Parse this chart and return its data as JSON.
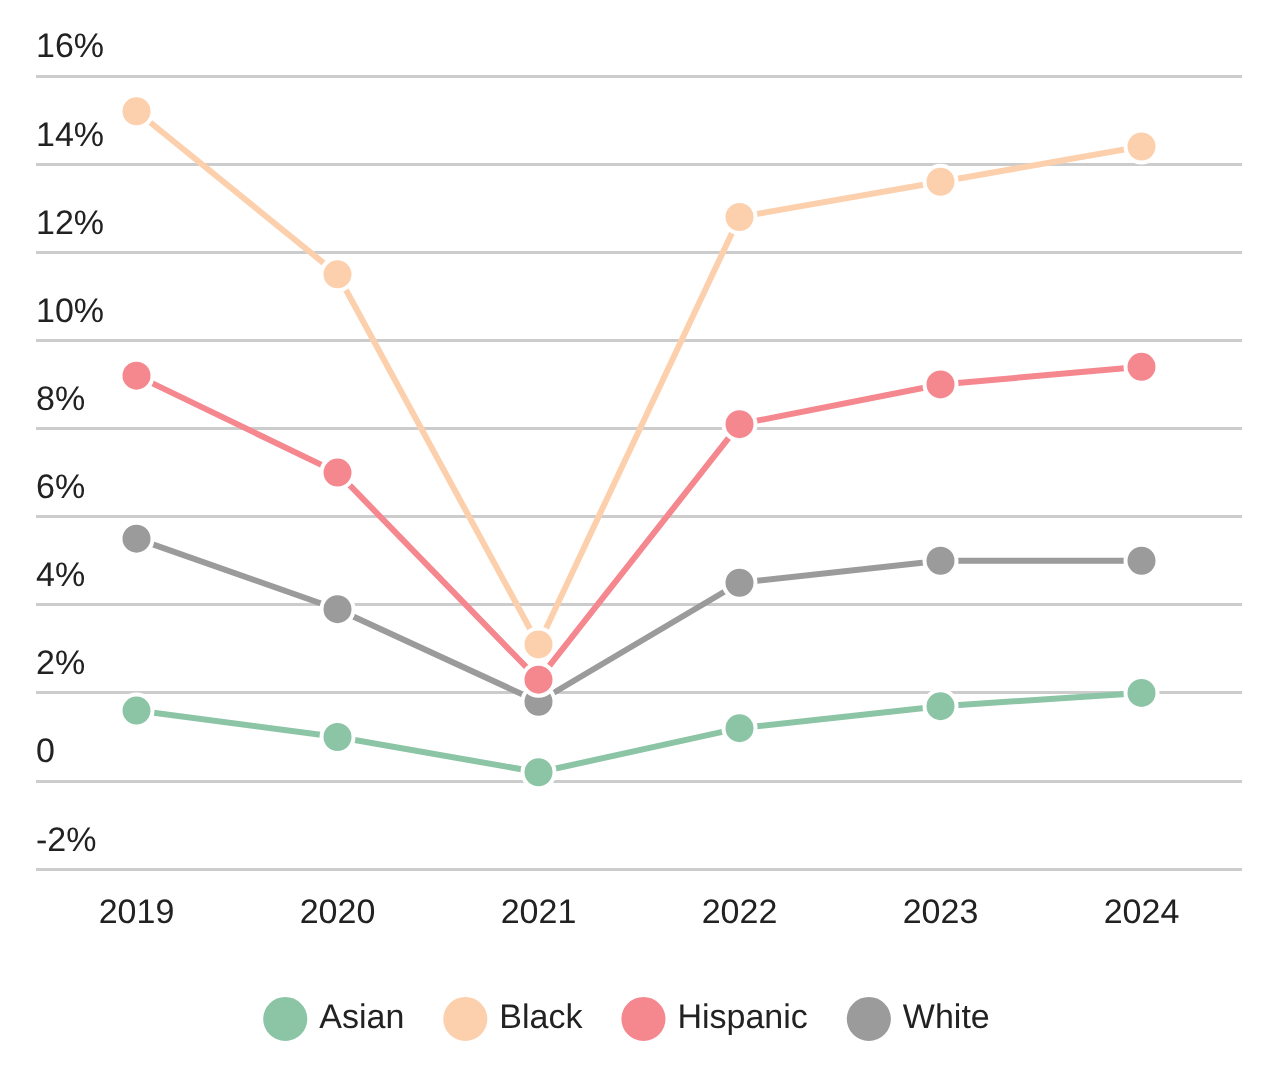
{
  "chart_data": {
    "type": "line",
    "categories": [
      "2019",
      "2020",
      "2021",
      "2022",
      "2023",
      "2024"
    ],
    "series": [
      {
        "name": "Asian",
        "color": "#8cc5a6",
        "values": [
          1.6,
          1.0,
          0.2,
          1.2,
          1.7,
          2.0
        ]
      },
      {
        "name": "Black",
        "color": "#fdd0ad",
        "values": [
          15.2,
          11.5,
          3.1,
          12.8,
          13.6,
          14.4
        ]
      },
      {
        "name": "Hispanic",
        "color": "#f5878f",
        "values": [
          9.2,
          7.0,
          2.3,
          8.1,
          9.0,
          9.4
        ]
      },
      {
        "name": "White",
        "color": "#9b9b9b",
        "values": [
          5.5,
          3.9,
          1.8,
          4.5,
          5.0,
          5.0
        ]
      }
    ],
    "ylim": [
      -2,
      16
    ],
    "yticks": [
      {
        "value": -2,
        "label": "-2%"
      },
      0,
      {
        "value": 2,
        "label": "2%"
      },
      {
        "value": 4,
        "label": "4%"
      },
      {
        "value": 6,
        "label": "6%"
      },
      {
        "value": 8,
        "label": "8%"
      },
      {
        "value": 10,
        "label": "10%"
      },
      {
        "value": 12,
        "label": "12%"
      },
      {
        "value": 14,
        "label": "14%"
      },
      {
        "value": 16,
        "label": "16%"
      }
    ],
    "grid": "y",
    "legend": "bottom",
    "marker": "circle",
    "line_style": "solid"
  }
}
